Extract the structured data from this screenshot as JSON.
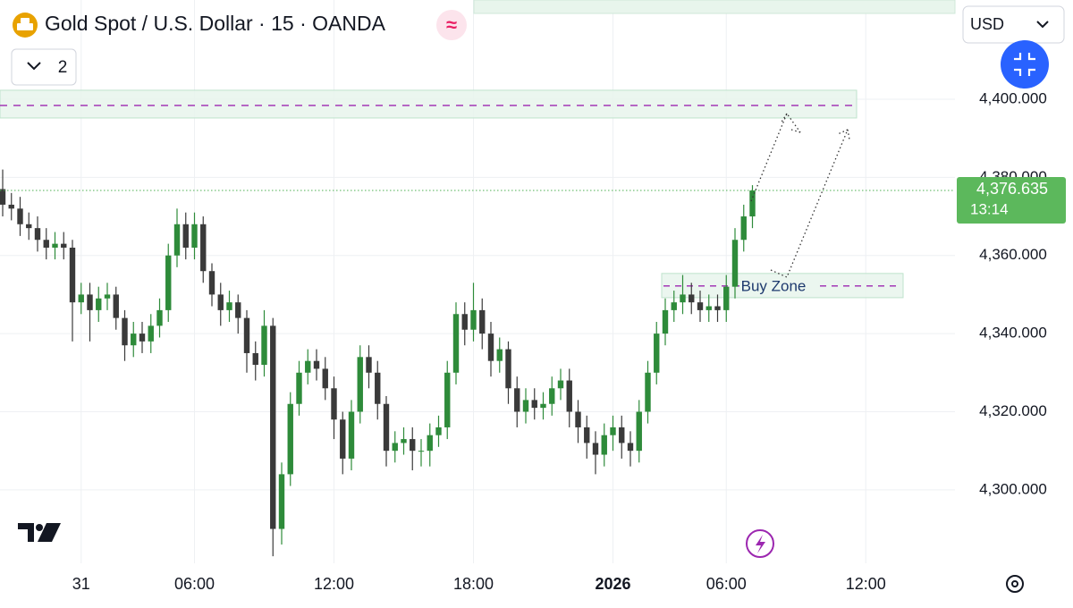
{
  "chart_data": {
    "type": "candlestick",
    "title": "Gold Spot / U.S. Dollar · 15 · OANDA",
    "indicator_count": "2",
    "currency": "USD",
    "countdown": "13:14",
    "last_price": {
      "value": 4376.635,
      "label": "4,376.635"
    },
    "up_color": "#2e8b3a",
    "down_color": "#3a3a3a",
    "grid": true,
    "ylim": [
      4281.2,
      4425.4
    ],
    "yticks": [
      {
        "value": 4300,
        "label": "4,300.000"
      },
      {
        "value": 4320,
        "label": "4,320.000"
      },
      {
        "value": 4340,
        "label": "4,340.000"
      },
      {
        "value": 4360,
        "label": "4,360.000"
      },
      {
        "value": 4380,
        "label": "4,380.000"
      },
      {
        "value": 4400,
        "label": "4,400.000"
      }
    ],
    "categories": [
      null,
      null,
      null,
      null,
      null,
      null,
      null,
      null,
      null,
      "31",
      null,
      null,
      null,
      null,
      null,
      null,
      null,
      null,
      null,
      null,
      null,
      null,
      "06:00",
      null,
      null,
      null,
      null,
      null,
      null,
      null,
      null,
      null,
      null,
      null,
      null,
      null,
      null,
      null,
      "12:00",
      null,
      null,
      null,
      null,
      null,
      null,
      null,
      null,
      null,
      null,
      null,
      null,
      null,
      null,
      null,
      "18:00",
      null,
      null,
      null,
      null,
      null,
      null,
      null,
      null,
      null,
      null,
      null,
      null,
      null,
      null,
      null,
      "2026",
      null,
      null,
      null,
      null,
      null,
      null,
      null,
      null,
      null,
      null,
      null,
      null,
      "06:00",
      null,
      null,
      null,
      null,
      null,
      null,
      null,
      null,
      null,
      null,
      null,
      null,
      null,
      null,
      null,
      "12:00"
    ],
    "open": [
      4377,
      4373,
      4372,
      4368,
      4367,
      4364,
      4362,
      4363,
      4362,
      4348,
      4350,
      4346,
      4349,
      4350,
      4344,
      4337,
      4340,
      4338,
      4342,
      4346,
      4360,
      4368,
      4362,
      4368,
      4356,
      4350,
      4346,
      4348,
      4344,
      4335,
      4332,
      4342,
      4290,
      4304,
      4322,
      4330,
      4333,
      4331,
      4326,
      4318,
      4308,
      4320,
      4334,
      4330,
      4322,
      4310,
      4312,
      4313,
      4310,
      4310,
      4314,
      4316,
      4330,
      4345,
      4341,
      4346,
      4340,
      4333,
      4336,
      4326,
      4320,
      4323,
      4321,
      4322,
      4326,
      4328,
      4320,
      4316,
      4312,
      4309,
      4314,
      4316,
      4312,
      4310,
      4320,
      4330,
      4340,
      4346,
      4348,
      4350,
      4348,
      4346,
      4347,
      4346,
      4352,
      4364,
      4370,
      null,
      null,
      null,
      null,
      null,
      null,
      null,
      null,
      null,
      null,
      null,
      null,
      null
    ],
    "high": [
      4382,
      4376,
      4375,
      4371,
      4370,
      4367,
      4366,
      4366,
      4364,
      4353,
      4353,
      4352,
      4353,
      4352,
      4346,
      4343,
      4343,
      4345,
      4349,
      4363,
      4372,
      4371,
      4371,
      4370,
      4358,
      4353,
      4351,
      4350,
      4346,
      4338,
      4346,
      4344,
      4307,
      4325,
      4333,
      4336,
      4336,
      4334,
      4329,
      4320,
      4323,
      4337,
      4337,
      4333,
      4324,
      4315,
      4316,
      4316,
      4313,
      4317,
      4319,
      4333,
      4348,
      4348,
      4353,
      4349,
      4343,
      4339,
      4338,
      4329,
      4326,
      4326,
      4325,
      4329,
      4331,
      4331,
      4323,
      4319,
      4315,
      4317,
      4319,
      4319,
      4315,
      4323,
      4333,
      4343,
      4349,
      4351,
      4355,
      4353,
      4351,
      4350,
      4350,
      4355,
      4367,
      4373,
      4378,
      null,
      null,
      null,
      null,
      null,
      null,
      null,
      null,
      null,
      null,
      null,
      null,
      null
    ],
    "low": [
      4370,
      4369,
      4365,
      4364,
      4361,
      4359,
      4359,
      4359,
      4338,
      4345,
      4338,
      4343,
      4346,
      4341,
      4333,
      4334,
      4335,
      4335,
      4339,
      4343,
      4357,
      4359,
      4359,
      4353,
      4347,
      4342,
      4343,
      4340,
      4330,
      4328,
      4329,
      4283,
      4286,
      4301,
      4319,
      4327,
      4328,
      4323,
      4313,
      4304,
      4305,
      4317,
      4326,
      4318,
      4306,
      4307,
      4309,
      4305,
      4306,
      4306,
      4311,
      4313,
      4327,
      4337,
      4338,
      4336,
      4329,
      4330,
      4322,
      4316,
      4317,
      4318,
      4318,
      4319,
      4323,
      4316,
      4312,
      4308,
      4304,
      4306,
      4310,
      4308,
      4306,
      4307,
      4317,
      4327,
      4337,
      4343,
      4345,
      4345,
      4343,
      4343,
      4343,
      4343,
      4349,
      4361,
      4367,
      null,
      null,
      null,
      null,
      null,
      null,
      null,
      null,
      null,
      null,
      null,
      null,
      null
    ],
    "close": [
      4373,
      4372,
      4368,
      4367,
      4364,
      4362,
      4363,
      4362,
      4348,
      4350,
      4346,
      4349,
      4350,
      4344,
      4337,
      4340,
      4338,
      4342,
      4346,
      4360,
      4368,
      4362,
      4368,
      4356,
      4350,
      4346,
      4348,
      4344,
      4335,
      4332,
      4342,
      4290,
      4304,
      4322,
      4330,
      4333,
      4331,
      4326,
      4318,
      4308,
      4320,
      4334,
      4330,
      4322,
      4310,
      4312,
      4313,
      4310,
      4310,
      4314,
      4316,
      4330,
      4345,
      4341,
      4346,
      4340,
      4333,
      4336,
      4326,
      4320,
      4323,
      4321,
      4322,
      4326,
      4328,
      4320,
      4316,
      4312,
      4309,
      4314,
      4316,
      4312,
      4310,
      4320,
      4330,
      4340,
      4346,
      4348,
      4350,
      4348,
      4346,
      4347,
      4346,
      4352,
      4364,
      4370,
      4376.635,
      null,
      null,
      null,
      null,
      null,
      null,
      null,
      null,
      null,
      null,
      null,
      null,
      null
    ],
    "zones": [
      {
        "low": 4395.2,
        "high": 4402.3,
        "line": 4398.4
      },
      {
        "low": 4349.2,
        "high": 4355.4,
        "line": 4352.2,
        "label": "Buy Zone"
      }
    ]
  }
}
